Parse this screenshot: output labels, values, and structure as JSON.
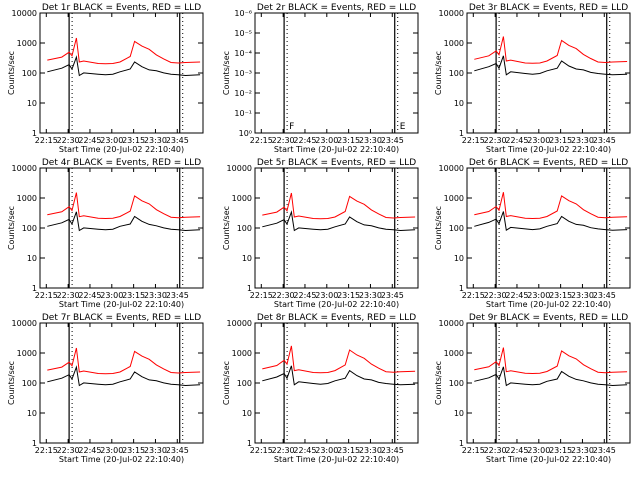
{
  "figure": {
    "colors": {
      "background": "#ffffff",
      "axes": "#000000",
      "events": "#000000",
      "lld": "#ff0000"
    }
  },
  "chart_data": [
    {
      "type": "line",
      "panel": "det1",
      "title": "Det 1r BLACK = Events, RED = LLD",
      "ylabel": "Counts/sec",
      "xlabel": "Start Time (20-Jul-02 22:10:40)",
      "xticks": [
        "22:15",
        "22:30",
        "22:45",
        "23:00",
        "23:15",
        "23:30",
        "23:45"
      ],
      "yticks": [
        "1",
        "10",
        "100",
        "1000",
        "10000"
      ],
      "ylim": [
        1,
        12000
      ],
      "yscale": "log",
      "x_minutes_since_2210": [
        5,
        15,
        20,
        22,
        25,
        27,
        30,
        40,
        45,
        50,
        55,
        62,
        65,
        70,
        75,
        80,
        85,
        90,
        95,
        100,
        110
      ],
      "series": [
        {
          "name": "Events",
          "color": "#000000",
          "values": [
            120,
            160,
            210,
            150,
            380,
            90,
            110,
            100,
            95,
            100,
            120,
            150,
            260,
            180,
            140,
            130,
            110,
            100,
            95,
            90,
            95
          ]
        },
        {
          "name": "LLD",
          "color": "#ff0000",
          "values": [
            300,
            380,
            560,
            420,
            1700,
            260,
            280,
            230,
            225,
            230,
            260,
            400,
            1300,
            900,
            700,
            450,
            330,
            250,
            240,
            250,
            260
          ]
        }
      ],
      "markers": [
        {
          "x_minutes_since_2210": 20,
          "label": ""
        },
        {
          "x_minutes_since_2210": 96,
          "label": ""
        }
      ]
    },
    {
      "type": "line",
      "panel": "det2",
      "title": "Det 2r BLACK = Events, RED = LLD",
      "ylabel": "Counts/sec",
      "xlabel": "Start Time (20-Jul-02 22:10:40)",
      "xticks": [
        "22:15",
        "22:30",
        "22:45",
        "23:00",
        "23:15",
        "23:30",
        "23:45"
      ],
      "yticks": [
        "10⁰",
        "10⁻¹",
        "10⁻²",
        "10⁻³",
        "10⁻⁴",
        "10⁻⁵",
        "10⁻⁶"
      ],
      "ylim": [
        1e-06,
        1
      ],
      "yscale": "log",
      "series": [],
      "markers": [
        {
          "x_minutes_since_2210": 20,
          "label": "F"
        },
        {
          "x_minutes_since_2210": 96,
          "label": "E"
        }
      ]
    },
    {
      "type": "line",
      "panel": "det3",
      "title": "Det 3r BLACK = Events, RED = LLD",
      "ylabel": "Counts/sec",
      "xlabel": "Start Time (20-Jul-02 22:10:40)",
      "xticks": [
        "22:15",
        "22:30",
        "22:45",
        "23:00",
        "23:15",
        "23:30",
        "23:45"
      ],
      "yticks": [
        "1",
        "10",
        "100",
        "1000",
        "10000"
      ],
      "ylim": [
        1,
        12000
      ],
      "yscale": "log",
      "x_minutes_since_2210": [
        5,
        15,
        20,
        22,
        25,
        27,
        30,
        40,
        45,
        50,
        55,
        62,
        65,
        70,
        75,
        80,
        85,
        90,
        95,
        100,
        110
      ],
      "series": [
        {
          "name": "Events",
          "color": "#000000",
          "values": [
            130,
            180,
            230,
            160,
            420,
            95,
            120,
            105,
            100,
            105,
            130,
            160,
            280,
            190,
            150,
            140,
            115,
            105,
            100,
            95,
            100
          ]
        },
        {
          "name": "LLD",
          "color": "#ff0000",
          "values": [
            320,
            420,
            620,
            460,
            1900,
            280,
            300,
            240,
            235,
            240,
            280,
            430,
            1400,
            950,
            740,
            470,
            340,
            260,
            250,
            260,
            270
          ]
        }
      ],
      "markers": [
        {
          "x_minutes_since_2210": 20,
          "label": ""
        },
        {
          "x_minutes_since_2210": 96,
          "label": ""
        }
      ]
    },
    {
      "type": "line",
      "panel": "det4",
      "title": "Det 4r BLACK = Events, RED = LLD",
      "ylabel": "Counts/sec",
      "xlabel": "Start Time (20-Jul-02 22:10:40)",
      "xticks": [
        "22:15",
        "22:30",
        "22:45",
        "23:00",
        "23:15",
        "23:30",
        "23:45"
      ],
      "yticks": [
        "1",
        "10",
        "100",
        "1000",
        "10000"
      ],
      "ylim": [
        1,
        12000
      ],
      "yscale": "log",
      "x_minutes_since_2210": [
        5,
        15,
        20,
        22,
        25,
        27,
        30,
        40,
        45,
        50,
        55,
        62,
        65,
        70,
        75,
        80,
        85,
        90,
        95,
        100,
        110
      ],
      "series": [
        {
          "name": "Events",
          "color": "#000000",
          "values": [
            125,
            165,
            215,
            150,
            390,
            90,
            110,
            100,
            95,
            100,
            125,
            150,
            270,
            185,
            145,
            130,
            110,
            100,
            95,
            90,
            95
          ]
        },
        {
          "name": "LLD",
          "color": "#ff0000",
          "values": [
            310,
            390,
            580,
            430,
            1750,
            265,
            285,
            235,
            230,
            235,
            270,
            410,
            1350,
            920,
            720,
            460,
            335,
            255,
            245,
            255,
            265
          ]
        }
      ],
      "markers": [
        {
          "x_minutes_since_2210": 20,
          "label": ""
        },
        {
          "x_minutes_since_2210": 96,
          "label": ""
        }
      ]
    },
    {
      "type": "line",
      "panel": "det5",
      "title": "Det 5r BLACK = Events, RED = LLD",
      "ylabel": "Counts/sec",
      "xlabel": "Start Time (20-Jul-02 22:10:40)",
      "xticks": [
        "22:15",
        "22:30",
        "22:45",
        "23:00",
        "23:15",
        "23:30",
        "23:45"
      ],
      "yticks": [
        "1",
        "10",
        "100",
        "1000",
        "10000"
      ],
      "ylim": [
        1,
        12000
      ],
      "yscale": "log",
      "x_minutes_since_2210": [
        5,
        15,
        20,
        22,
        25,
        27,
        30,
        40,
        45,
        50,
        55,
        62,
        65,
        70,
        75,
        80,
        85,
        90,
        95,
        100,
        110
      ],
      "series": [
        {
          "name": "Events",
          "color": "#000000",
          "values": [
            120,
            160,
            210,
            150,
            380,
            90,
            110,
            100,
            95,
            100,
            120,
            150,
            260,
            180,
            140,
            130,
            110,
            100,
            95,
            90,
            95
          ]
        },
        {
          "name": "LLD",
          "color": "#ff0000",
          "values": [
            300,
            380,
            560,
            420,
            1700,
            260,
            280,
            230,
            225,
            230,
            260,
            400,
            1300,
            900,
            700,
            450,
            330,
            250,
            240,
            250,
            260
          ]
        }
      ],
      "markers": [
        {
          "x_minutes_since_2210": 20,
          "label": ""
        },
        {
          "x_minutes_since_2210": 96,
          "label": ""
        }
      ]
    },
    {
      "type": "line",
      "panel": "det6",
      "title": "Det 6r BLACK = Events, RED = LLD",
      "ylabel": "Counts/sec",
      "xlabel": "Start Time (20-Jul-02 22:10:40)",
      "xticks": [
        "22:15",
        "22:30",
        "22:45",
        "23:00",
        "23:15",
        "23:30",
        "23:45"
      ],
      "yticks": [
        "1",
        "10",
        "100",
        "1000",
        "10000"
      ],
      "ylim": [
        1,
        12000
      ],
      "yscale": "log",
      "x_minutes_since_2210": [
        5,
        15,
        20,
        22,
        25,
        27,
        30,
        40,
        45,
        50,
        55,
        62,
        65,
        70,
        75,
        80,
        85,
        90,
        95,
        100,
        110
      ],
      "series": [
        {
          "name": "Events",
          "color": "#000000",
          "values": [
            125,
            170,
            220,
            155,
            400,
            92,
            115,
            102,
            97,
            102,
            125,
            155,
            270,
            185,
            145,
            135,
            112,
            102,
            97,
            92,
            97
          ]
        },
        {
          "name": "LLD",
          "color": "#ff0000",
          "values": [
            310,
            400,
            590,
            440,
            1800,
            270,
            290,
            235,
            230,
            235,
            270,
            415,
            1350,
            930,
            720,
            460,
            335,
            255,
            245,
            255,
            265
          ]
        }
      ],
      "markers": [
        {
          "x_minutes_since_2210": 20,
          "label": ""
        },
        {
          "x_minutes_since_2210": 96,
          "label": ""
        }
      ]
    },
    {
      "type": "line",
      "panel": "det7",
      "title": "Det 7r BLACK = Events, RED = LLD",
      "ylabel": "Counts/sec",
      "xlabel": "Start Time (20-Jul-02 22:10:40)",
      "xticks": [
        "22:15",
        "22:30",
        "22:45",
        "23:00",
        "23:15",
        "23:30",
        "23:45"
      ],
      "yticks": [
        "1",
        "10",
        "100",
        "1000",
        "10000"
      ],
      "ylim": [
        1,
        12000
      ],
      "yscale": "log",
      "x_minutes_since_2210": [
        5,
        15,
        20,
        22,
        25,
        27,
        30,
        40,
        45,
        50,
        55,
        62,
        65,
        70,
        75,
        80,
        85,
        90,
        95,
        100,
        110
      ],
      "series": [
        {
          "name": "Events",
          "color": "#000000",
          "values": [
            120,
            160,
            210,
            150,
            380,
            90,
            110,
            100,
            95,
            100,
            120,
            150,
            260,
            180,
            140,
            130,
            110,
            100,
            95,
            90,
            95
          ]
        },
        {
          "name": "LLD",
          "color": "#ff0000",
          "values": [
            300,
            380,
            560,
            420,
            1700,
            260,
            280,
            230,
            225,
            230,
            260,
            400,
            1300,
            900,
            700,
            450,
            330,
            250,
            240,
            250,
            260
          ]
        }
      ],
      "markers": [
        {
          "x_minutes_since_2210": 20,
          "label": ""
        },
        {
          "x_minutes_since_2210": 96,
          "label": ""
        }
      ]
    },
    {
      "type": "line",
      "panel": "det8",
      "title": "Det 8r BLACK = Events, RED = LLD",
      "ylabel": "Counts/sec",
      "xlabel": "Start Time (20-Jul-02 22:10:40)",
      "xticks": [
        "22:15",
        "22:30",
        "22:45",
        "23:00",
        "23:15",
        "23:30",
        "23:45"
      ],
      "yticks": [
        "1",
        "10",
        "100",
        "1000",
        "10000"
      ],
      "ylim": [
        1,
        12000
      ],
      "yscale": "log",
      "x_minutes_since_2210": [
        5,
        15,
        20,
        22,
        25,
        27,
        30,
        40,
        45,
        50,
        55,
        62,
        65,
        70,
        75,
        80,
        85,
        90,
        95,
        100,
        110
      ],
      "series": [
        {
          "name": "Events",
          "color": "#000000",
          "values": [
            130,
            175,
            230,
            160,
            420,
            95,
            120,
            105,
            100,
            105,
            130,
            160,
            290,
            195,
            150,
            140,
            115,
            105,
            100,
            95,
            100
          ]
        },
        {
          "name": "LLD",
          "color": "#ff0000",
          "values": [
            330,
            430,
            650,
            480,
            2000,
            290,
            310,
            250,
            245,
            250,
            290,
            450,
            1450,
            980,
            760,
            480,
            350,
            265,
            255,
            265,
            275
          ]
        }
      ],
      "markers": [
        {
          "x_minutes_since_2210": 20,
          "label": ""
        },
        {
          "x_minutes_since_2210": 96,
          "label": ""
        }
      ]
    },
    {
      "type": "line",
      "panel": "det9",
      "title": "Det 9r BLACK = Events, RED = LLD",
      "ylabel": "Counts/sec",
      "xlabel": "Start Time (20-Jul-02 22:10:40)",
      "xticks": [
        "22:15",
        "22:30",
        "22:45",
        "23:00",
        "23:15",
        "23:30",
        "23:45"
      ],
      "yticks": [
        "1",
        "10",
        "100",
        "1000",
        "10000"
      ],
      "ylim": [
        1,
        12000
      ],
      "yscale": "log",
      "x_minutes_since_2210": [
        5,
        15,
        20,
        22,
        25,
        27,
        30,
        40,
        45,
        50,
        55,
        62,
        65,
        70,
        75,
        80,
        85,
        90,
        95,
        100,
        110
      ],
      "series": [
        {
          "name": "Events",
          "color": "#000000",
          "values": [
            125,
            165,
            215,
            150,
            390,
            90,
            110,
            100,
            95,
            100,
            125,
            150,
            270,
            185,
            145,
            130,
            110,
            100,
            95,
            90,
            95
          ]
        },
        {
          "name": "LLD",
          "color": "#ff0000",
          "values": [
            310,
            390,
            580,
            430,
            1750,
            265,
            285,
            235,
            230,
            235,
            270,
            410,
            1350,
            920,
            720,
            460,
            335,
            255,
            245,
            255,
            265
          ]
        }
      ],
      "markers": [
        {
          "x_minutes_since_2210": 20,
          "label": ""
        },
        {
          "x_minutes_since_2210": 96,
          "label": ""
        }
      ]
    }
  ]
}
